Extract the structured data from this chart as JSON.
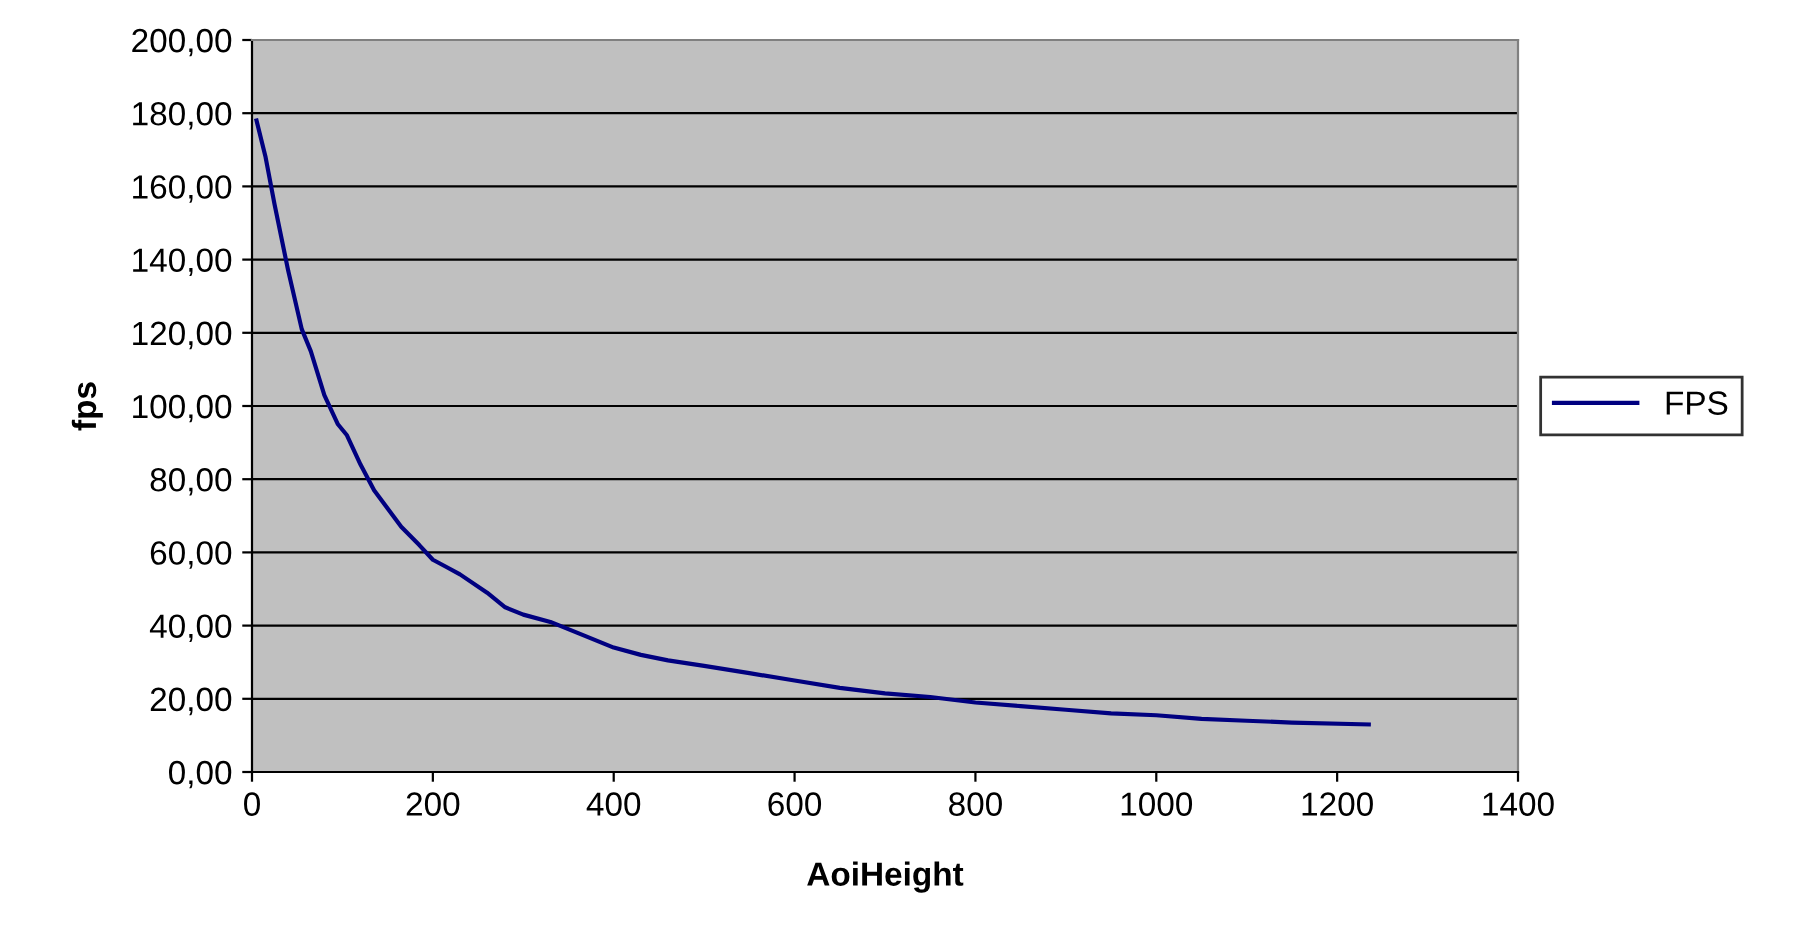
{
  "chart_data": {
    "type": "line",
    "xlabel": "AoiHeight",
    "ylabel": "fps",
    "series": [
      {
        "name": "FPS",
        "color": "#000080",
        "x": [
          5,
          15,
          25,
          40,
          55,
          65,
          80,
          95,
          105,
          120,
          135,
          150,
          165,
          185,
          200,
          215,
          230,
          260,
          280,
          300,
          330,
          360,
          400,
          430,
          460,
          500,
          550,
          600,
          650,
          700,
          750,
          800,
          850,
          900,
          950,
          1000,
          1050,
          1100,
          1150,
          1235
        ],
        "values": [
          178,
          168,
          155,
          137,
          121,
          115,
          103,
          95,
          92,
          84,
          77,
          72,
          67,
          62,
          58,
          56,
          54,
          49,
          45,
          43,
          41,
          38,
          34,
          32,
          30.5,
          29,
          27,
          25,
          23,
          21.5,
          20.5,
          19,
          18,
          17,
          16,
          15.5,
          14.5,
          14,
          13.5,
          13
        ]
      }
    ],
    "xlim": [
      0,
      1400
    ],
    "xticks": [
      0,
      200,
      400,
      600,
      800,
      1000,
      1200,
      1400
    ],
    "ylim": [
      0,
      200
    ],
    "yticks": [
      {
        "value": 0,
        "label": "0,00"
      },
      {
        "value": 20,
        "label": "20,00"
      },
      {
        "value": 40,
        "label": "40,00"
      },
      {
        "value": 60,
        "label": "60,00"
      },
      {
        "value": 80,
        "label": "80,00"
      },
      {
        "value": 100,
        "label": "100,00"
      },
      {
        "value": 120,
        "label": "120,00"
      },
      {
        "value": 140,
        "label": "140,00"
      },
      {
        "value": 160,
        "label": "160,00"
      },
      {
        "value": 180,
        "label": "180,00"
      },
      {
        "value": 200,
        "label": "200,00"
      }
    ],
    "grid": "y",
    "legend": "right",
    "marker": "none",
    "line_style": "solid"
  }
}
